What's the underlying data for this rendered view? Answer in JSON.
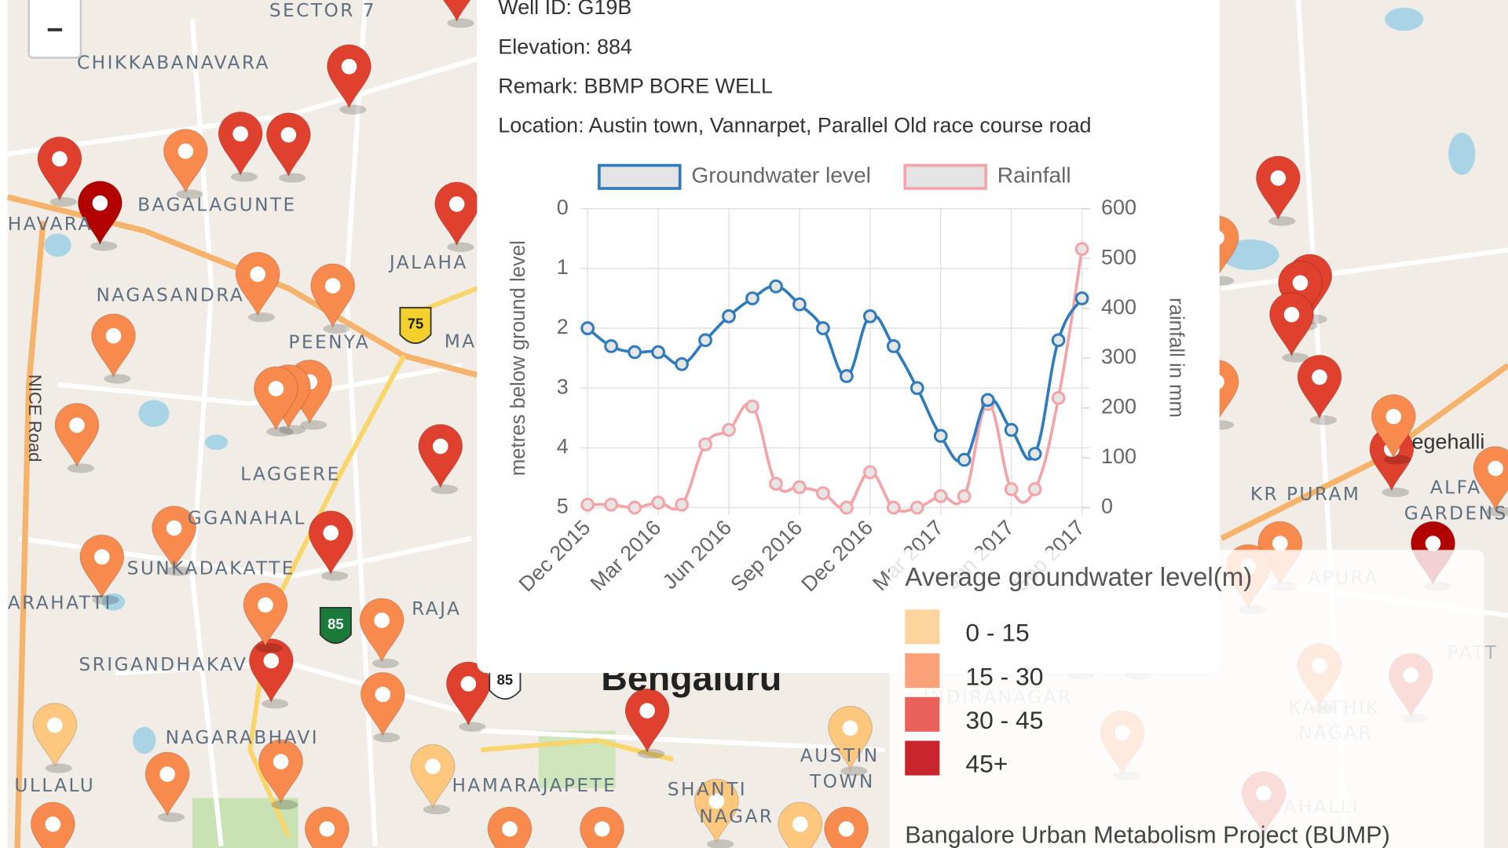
{
  "zoom_out": "−",
  "map_labels": [
    "SECTOR 7",
    "CHIKKABANAVARA",
    "BAGALAGUNTE",
    "HAVARA",
    "JALAHA",
    "NAGASANDRA",
    "PEENYA",
    "MA",
    "NICE Road",
    "LAGGERE",
    "GGANAHAL",
    "SUNKADAKATTE",
    "ARAHATTI",
    "RAJA",
    "SRIGANDHAKAV",
    "NAGARABHAVI",
    "ULLALU",
    "HAMARAJAPETE",
    "Bengaluru",
    "AUSTIN",
    "TOWN",
    "SHANTI",
    "NAGAR",
    "KR PURAM",
    "egehalli",
    "ALFA",
    "GARDENS",
    "INDIRANAGAR",
    "KARTHIK",
    "NAGAR",
    "APURA",
    "THAHALLI",
    "PATT"
  ],
  "road_shields": [
    "75",
    "85",
    "85"
  ],
  "popup": {
    "lines": [
      "Well ID: G19B",
      "Elevation: 884",
      "Remark: BBMP BORE WELL",
      "Location: Austin town, Vannarpet, Parallel Old race course road"
    ]
  },
  "chart_data": {
    "type": "line",
    "categories": [
      "Dec 2015",
      null,
      null,
      "Mar 2016",
      null,
      null,
      "Jun 2016",
      null,
      null,
      "Sep 2016",
      null,
      null,
      "Dec 2016",
      null,
      null,
      "Mar 2017",
      null,
      null,
      "Jun 2017",
      null,
      null,
      "Sep 2017"
    ],
    "series": [
      {
        "name": "Groundwater level",
        "color": "#2e7bbd",
        "values": [
          2.0,
          2.3,
          2.4,
          2.4,
          2.6,
          2.2,
          1.8,
          1.5,
          1.3,
          1.6,
          2.0,
          2.8,
          1.8,
          2.3,
          3.0,
          3.8,
          4.2,
          3.2,
          3.7,
          4.1,
          2.2,
          1.5
        ]
      },
      {
        "name": "Rainfall",
        "color": "#f4a4a8",
        "axis": "y2",
        "values": [
          6,
          6,
          0,
          10,
          6,
          127,
          156,
          203,
          48,
          41,
          29,
          0,
          71,
          0,
          0,
          23,
          23,
          208,
          37,
          37,
          220,
          519
        ]
      }
    ],
    "ylabel": "metres below ground level",
    "y2label": "rainfall in mm",
    "ylim": [
      0,
      5
    ],
    "yticks": [
      0,
      1,
      2,
      3,
      4,
      5
    ],
    "y_reversed": true,
    "y2lim": [
      0,
      600
    ],
    "y2ticks": [
      0,
      100,
      200,
      300,
      400,
      500,
      600
    ],
    "grid": true,
    "legend": "top"
  },
  "legend": {
    "title": "Average groundwater level(m)",
    "items": [
      {
        "label": "0 - 15",
        "color": "#fdd49e"
      },
      {
        "label": "15 - 30",
        "color": "#fca27a"
      },
      {
        "label": "30 - 45",
        "color": "#e8625a"
      },
      {
        "label": "45+",
        "color": "#c8262c"
      }
    ]
  },
  "attribution": "Bangalore Urban Metabolism Project (BUMP)"
}
